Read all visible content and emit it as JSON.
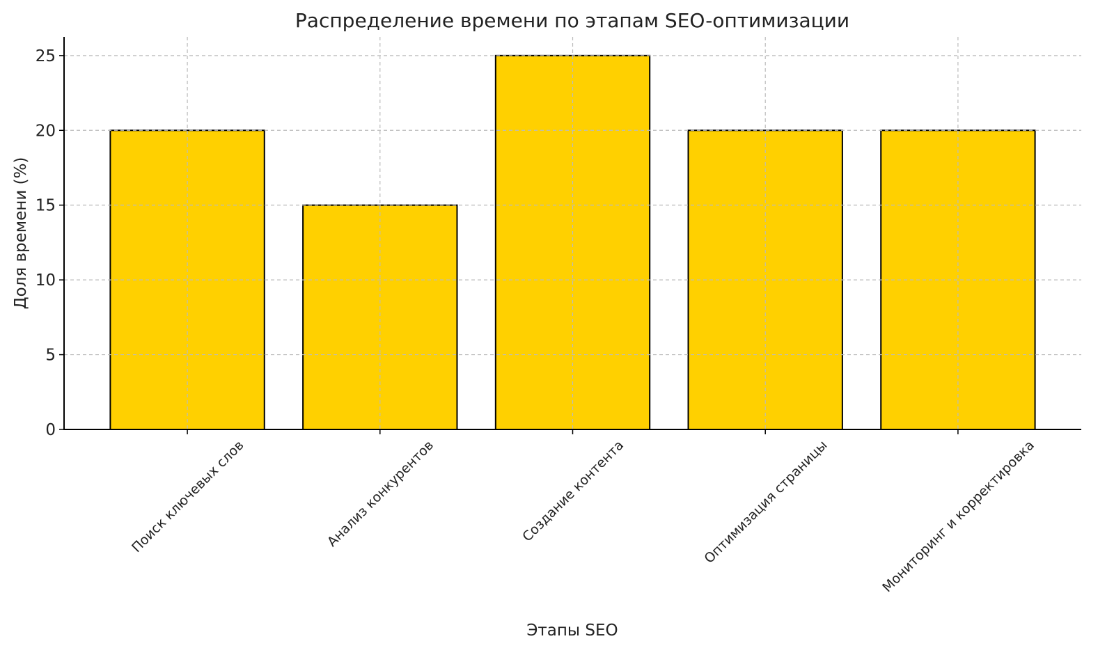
{
  "chart_data": {
    "type": "bar",
    "title": "Распределение времени по этапам SEO-оптимизации",
    "xlabel": "Этапы SEO",
    "ylabel": "Доля времени (%)",
    "categories": [
      "Поиск ключевых слов",
      "Анализ конкурентов",
      "Создание контента",
      "Оптимизация страницы",
      "Мониторинг и корректировка"
    ],
    "values": [
      20,
      15,
      25,
      20,
      20
    ],
    "ylim": [
      0,
      26.25
    ],
    "yticks": [
      0,
      5,
      10,
      15,
      20,
      25
    ],
    "grid": true,
    "bar_color": "#FFD000",
    "edge_color": "#000000"
  }
}
